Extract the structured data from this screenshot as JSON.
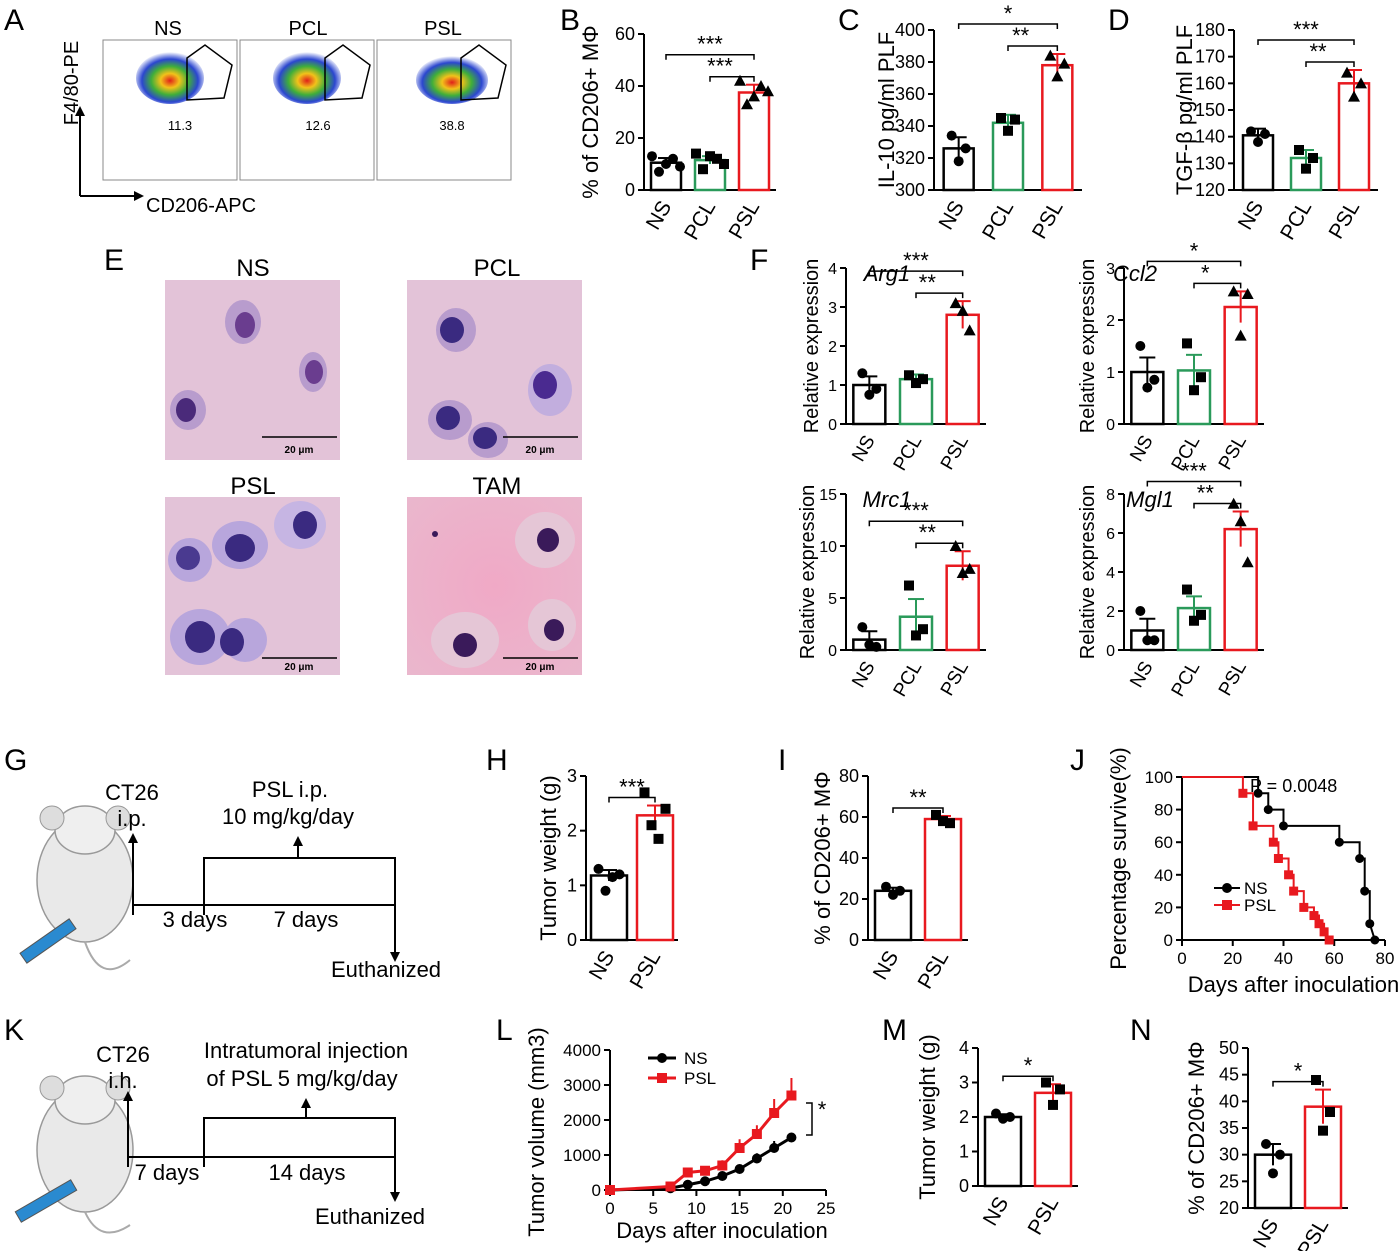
{
  "panel_letters": {
    "A": "A",
    "B": "B",
    "C": "C",
    "D": "D",
    "E": "E",
    "F": "F",
    "G": "G",
    "H": "H",
    "I": "I",
    "J": "J",
    "K": "K",
    "L": "L",
    "M": "M",
    "N": "N"
  },
  "colors": {
    "NS": "#000000",
    "PCL": "#2a9a5a",
    "PSL": "#e8191f"
  },
  "flow": {
    "samples": [
      {
        "name": "NS",
        "percent": "11.3"
      },
      {
        "name": "PCL",
        "percent": "12.6"
      },
      {
        "name": "PSL",
        "percent": "38.8"
      }
    ],
    "y_label": "F4/80-PE",
    "x_label": "CD206-APC"
  },
  "micrographs": [
    {
      "title": "NS",
      "scale": "20 μm"
    },
    {
      "title": "PCL",
      "scale": "20 μm"
    },
    {
      "title": "PSL",
      "scale": "20 μm"
    },
    {
      "title": "TAM",
      "scale": "20 μm"
    }
  ],
  "schematic_G": {
    "cell_line": "CT26",
    "route": "i.p.",
    "treatment": "PSL i.p.",
    "dose": "10 mg/kg/day",
    "interval1": "3 days",
    "interval2": "7 days",
    "end": "Euthanized"
  },
  "schematic_K": {
    "cell_line": "CT26",
    "route": "i.h.",
    "treatment": "Intratumoral injection",
    "dose": "of PSL 5 mg/kg/day",
    "interval1": "7 days",
    "interval2": "14 days",
    "end": "Euthanized"
  },
  "chart_data": [
    {
      "panel": "B",
      "type": "bar",
      "categories": [
        "NS",
        "PCL",
        "PSL"
      ],
      "values": [
        10.5,
        11.5,
        37.5
      ],
      "errors": [
        1.8,
        1.5,
        3.0
      ],
      "points": [
        [
          13,
          7,
          10,
          12,
          9
        ],
        [
          14,
          8,
          13,
          12,
          10
        ],
        [
          42,
          33,
          36,
          40,
          38
        ]
      ],
      "ylim": [
        0,
        60
      ],
      "yticks": [
        0,
        20,
        40,
        60
      ],
      "ylabel": "% of CD206+ MΦ",
      "sig": [
        {
          "from": 0,
          "to": 2,
          "label": "***"
        },
        {
          "from": 1,
          "to": 2,
          "label": "***"
        }
      ]
    },
    {
      "panel": "C",
      "type": "bar",
      "categories": [
        "NS",
        "PCL",
        "PSL"
      ],
      "values": [
        326,
        342,
        378
      ],
      "errors": [
        7,
        5,
        7
      ],
      "points": [
        [
          334,
          318,
          326
        ],
        [
          345,
          337,
          344
        ],
        [
          384,
          371,
          379
        ]
      ],
      "ylim": [
        300,
        400
      ],
      "yticks": [
        300,
        320,
        340,
        360,
        380,
        400
      ],
      "ylabel": "IL-10 pg/ml PLF",
      "sig": [
        {
          "from": 0,
          "to": 2,
          "label": "*"
        },
        {
          "from": 1,
          "to": 2,
          "label": "**"
        }
      ]
    },
    {
      "panel": "D",
      "type": "bar",
      "categories": [
        "NS",
        "PCL",
        "PSL"
      ],
      "values": [
        140.5,
        132,
        160
      ],
      "errors": [
        2.5,
        3,
        5
      ],
      "points": [
        [
          142,
          138,
          141
        ],
        [
          135,
          128,
          132
        ],
        [
          164,
          155,
          160
        ]
      ],
      "ylim": [
        120,
        180
      ],
      "yticks": [
        120,
        130,
        140,
        150,
        160,
        170,
        180
      ],
      "ylabel": "TGF-β pg/ml PLF",
      "sig": [
        {
          "from": 0,
          "to": 2,
          "label": "***"
        },
        {
          "from": 1,
          "to": 2,
          "label": "**"
        }
      ]
    },
    {
      "panel": "F",
      "gene": "Arg1",
      "type": "bar",
      "categories": [
        "NS",
        "PCL",
        "PSL"
      ],
      "values": [
        1.0,
        1.15,
        2.8
      ],
      "errors": [
        0.22,
        0.12,
        0.35
      ],
      "points": [
        [
          1.3,
          0.75,
          0.9
        ],
        [
          1.25,
          1.05,
          1.15
        ],
        [
          3.1,
          2.9,
          2.4
        ]
      ],
      "ylim": [
        0,
        4
      ],
      "yticks": [
        0,
        1,
        2,
        3,
        4
      ],
      "ylabel": "Relative expression",
      "sig": [
        {
          "from": 0,
          "to": 2,
          "label": "***"
        },
        {
          "from": 1,
          "to": 2,
          "label": "**"
        }
      ]
    },
    {
      "panel": "F",
      "gene": "Ccl2",
      "type": "bar",
      "categories": [
        "NS",
        "PCL",
        "PSL"
      ],
      "values": [
        1.0,
        1.03,
        2.25
      ],
      "errors": [
        0.28,
        0.3,
        0.3
      ],
      "points": [
        [
          1.5,
          0.7,
          0.85
        ],
        [
          1.55,
          0.65,
          0.9
        ],
        [
          2.55,
          1.7,
          2.5
        ]
      ],
      "ylim": [
        0,
        3
      ],
      "yticks": [
        0,
        1,
        2,
        3
      ],
      "ylabel": "Relative expression",
      "sig": [
        {
          "from": 0,
          "to": 2,
          "label": "*"
        },
        {
          "from": 1,
          "to": 2,
          "label": "*"
        }
      ]
    },
    {
      "panel": "F",
      "gene": "Mrc1",
      "type": "bar",
      "categories": [
        "NS",
        "PCL",
        "PSL"
      ],
      "values": [
        1.0,
        3.2,
        8.1
      ],
      "errors": [
        0.8,
        1.7,
        1.4
      ],
      "points": [
        [
          2.2,
          0.5,
          0.3
        ],
        [
          6.2,
          1.4,
          2.0
        ],
        [
          10.0,
          7.4,
          7.8
        ]
      ],
      "ylim": [
        0,
        15
      ],
      "yticks": [
        0,
        5,
        10,
        15
      ],
      "ylabel": "Relative expression",
      "sig": [
        {
          "from": 0,
          "to": 2,
          "label": "***"
        },
        {
          "from": 1,
          "to": 2,
          "label": "**"
        }
      ]
    },
    {
      "panel": "F",
      "gene": "Mgl1",
      "type": "bar",
      "categories": [
        "NS",
        "PCL",
        "PSL"
      ],
      "values": [
        1.0,
        2.15,
        6.2
      ],
      "errors": [
        0.6,
        0.6,
        0.9
      ],
      "points": [
        [
          2.0,
          0.5,
          0.5
        ],
        [
          3.1,
          1.5,
          1.8
        ],
        [
          7.5,
          6.6,
          4.5
        ]
      ],
      "ylim": [
        0,
        8
      ],
      "yticks": [
        0,
        2,
        4,
        6,
        8
      ],
      "ylabel": "Relative expression",
      "sig": [
        {
          "from": 0,
          "to": 2,
          "label": "***"
        },
        {
          "from": 1,
          "to": 2,
          "label": "**"
        }
      ]
    },
    {
      "panel": "H",
      "type": "bar",
      "categories": [
        "NS",
        "PSL"
      ],
      "values": [
        1.18,
        2.28
      ],
      "errors": [
        0.1,
        0.18
      ],
      "points": [
        [
          1.3,
          0.9,
          1.15,
          1.2
        ],
        [
          2.7,
          2.1,
          1.85,
          2.4
        ]
      ],
      "ylim": [
        0,
        3
      ],
      "yticks": [
        0,
        1,
        2,
        3
      ],
      "ylabel": "Tumor  weight (g)",
      "sig": [
        {
          "from": 0,
          "to": 1,
          "label": "***"
        }
      ]
    },
    {
      "panel": "I",
      "type": "bar",
      "categories": [
        "NS",
        "PSL"
      ],
      "values": [
        24,
        59
      ],
      "errors": [
        1.5,
        1.5
      ],
      "points": [
        [
          26,
          22,
          24
        ],
        [
          61,
          58,
          57
        ]
      ],
      "ylim": [
        0,
        80
      ],
      "yticks": [
        0,
        20,
        40,
        60,
        80
      ],
      "ylabel": "% of CD206+ MΦ",
      "sig": [
        {
          "from": 0,
          "to": 1,
          "label": "**"
        }
      ]
    },
    {
      "panel": "J",
      "type": "line",
      "subtype": "survival",
      "xlabel": "Days after inoculation",
      "ylabel": "Percentage survive(%)",
      "annotation": "P = 0.0048",
      "xlim": [
        0,
        80
      ],
      "ylim": [
        0,
        100
      ],
      "xticks": [
        0,
        20,
        40,
        60,
        80
      ],
      "yticks": [
        0,
        20,
        40,
        60,
        80,
        100
      ],
      "series": [
        {
          "name": "NS",
          "x": [
            0,
            30,
            30,
            34,
            34,
            40,
            40,
            62,
            62,
            70,
            70,
            72,
            72,
            74,
            74,
            76
          ],
          "y": [
            100,
            100,
            90,
            90,
            80,
            80,
            70,
            70,
            60,
            60,
            50,
            50,
            30,
            30,
            10,
            0
          ],
          "markers": [
            [
              30,
              90
            ],
            [
              34,
              80
            ],
            [
              40,
              70
            ],
            [
              62,
              60
            ],
            [
              70,
              50
            ],
            [
              72,
              30
            ],
            [
              74,
              10
            ],
            [
              76,
              0
            ]
          ]
        },
        {
          "name": "PSL",
          "x": [
            0,
            24,
            24,
            28,
            28,
            36,
            36,
            38,
            38,
            42,
            42,
            44,
            44,
            48,
            48,
            52,
            52,
            54,
            54,
            56,
            56,
            58
          ],
          "y": [
            100,
            100,
            90,
            90,
            70,
            70,
            60,
            60,
            50,
            50,
            40,
            40,
            30,
            30,
            20,
            20,
            15,
            15,
            10,
            10,
            5,
            0
          ],
          "markers": [
            [
              24,
              90
            ],
            [
              28,
              70
            ],
            [
              36,
              60
            ],
            [
              38,
              50
            ],
            [
              42,
              40
            ],
            [
              44,
              30
            ],
            [
              48,
              20
            ],
            [
              52,
              15
            ],
            [
              54,
              10
            ],
            [
              56,
              5
            ],
            [
              58,
              0
            ]
          ]
        }
      ]
    },
    {
      "panel": "L",
      "type": "line",
      "xlabel": "Days after inoculation",
      "ylabel": "Tumor  volume (mm3)",
      "xlim": [
        0,
        25
      ],
      "ylim": [
        0,
        4000
      ],
      "xticks": [
        0,
        5,
        10,
        15,
        20,
        25
      ],
      "yticks": [
        0,
        1000,
        2000,
        3000,
        4000
      ],
      "sig": "*",
      "series": [
        {
          "name": "NS",
          "x": [
            0,
            7,
            9,
            11,
            13,
            15,
            17,
            19,
            21
          ],
          "y": [
            0,
            50,
            150,
            250,
            400,
            600,
            900,
            1200,
            1500
          ],
          "errors": [
            0,
            30,
            50,
            50,
            60,
            100,
            150,
            200,
            120
          ]
        },
        {
          "name": "PSL",
          "x": [
            0,
            7,
            9,
            11,
            13,
            15,
            17,
            19,
            21
          ],
          "y": [
            0,
            100,
            500,
            550,
            700,
            1200,
            1600,
            2200,
            2700
          ],
          "errors": [
            0,
            50,
            100,
            100,
            150,
            250,
            250,
            400,
            500
          ]
        }
      ]
    },
    {
      "panel": "M",
      "type": "bar",
      "categories": [
        "NS",
        "PSL"
      ],
      "values": [
        2.0,
        2.7
      ],
      "errors": [
        0.08,
        0.25
      ],
      "points": [
        [
          2.1,
          1.95,
          2.0
        ],
        [
          3.0,
          2.35,
          2.8
        ]
      ],
      "ylim": [
        0,
        4
      ],
      "yticks": [
        0,
        1,
        2,
        3,
        4
      ],
      "ylabel": "Tumor  weight (g)",
      "sig": [
        {
          "from": 0,
          "to": 1,
          "label": "*"
        }
      ]
    },
    {
      "panel": "N",
      "type": "bar",
      "categories": [
        "NS",
        "PSL"
      ],
      "values": [
        30,
        39
      ],
      "errors": [
        2,
        3.2
      ],
      "points": [
        [
          32,
          26.5,
          30
        ],
        [
          44,
          34.5,
          38
        ]
      ],
      "ylim": [
        20,
        50
      ],
      "yticks": [
        20,
        25,
        30,
        35,
        40,
        45,
        50
      ],
      "ylabel": "% of CD206+ MΦ",
      "sig": [
        {
          "from": 0,
          "to": 1,
          "label": "*"
        }
      ]
    }
  ]
}
